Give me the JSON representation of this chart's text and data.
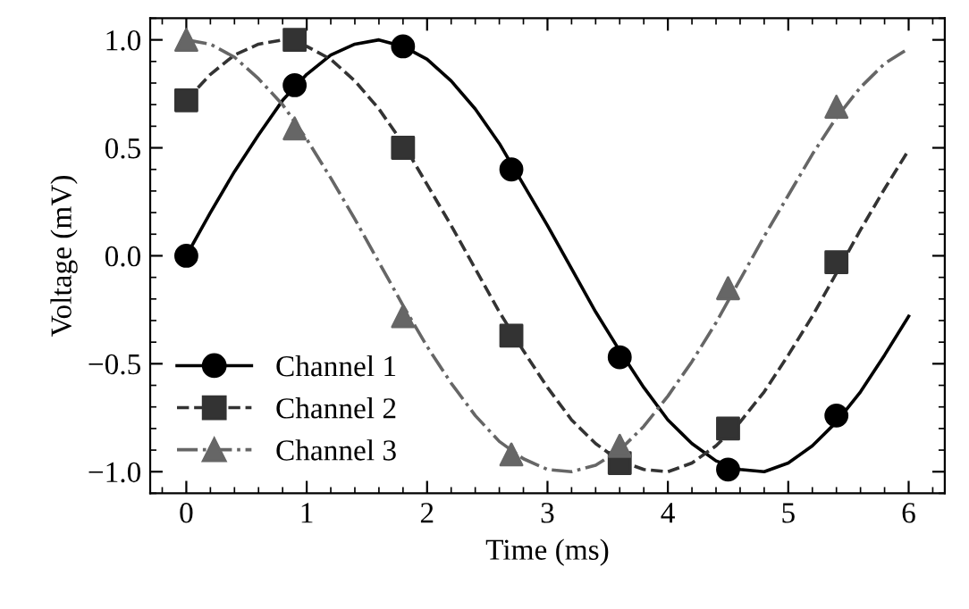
{
  "chart_data": {
    "type": "line",
    "xlabel": "Time (ms)",
    "ylabel": "Voltage (mV)",
    "xlim": [
      -0.3,
      6.3
    ],
    "ylim": [
      -1.1,
      1.1
    ],
    "xticks": [
      0,
      1,
      2,
      3,
      4,
      5,
      6
    ],
    "yticks": [
      {
        "value": -1.0,
        "label": "−1.0"
      },
      {
        "value": -0.5,
        "label": "−0.5"
      },
      {
        "value": 0.0,
        "label": "0.0"
      },
      {
        "value": 0.5,
        "label": "0.5"
      },
      {
        "value": 1.0,
        "label": "1.0"
      }
    ],
    "grid": false,
    "legend": "bottom left",
    "series": [
      {
        "name": "Channel 1",
        "color": "#000000",
        "line_style": "solid",
        "marker": "none",
        "x": [
          0,
          0.2,
          0.4,
          0.6,
          0.8,
          1.0,
          1.2,
          1.4,
          1.6,
          1.8,
          2.0,
          2.2,
          2.4,
          2.6,
          2.8,
          3.0,
          3.2,
          3.4,
          3.6,
          3.8,
          4.0,
          4.2,
          4.4,
          4.6,
          4.8,
          5.0,
          5.2,
          5.4,
          5.6,
          5.8,
          6.0
        ],
        "values": [
          0,
          0.2,
          0.39,
          0.56,
          0.72,
          0.84,
          0.93,
          0.98,
          1.0,
          0.97,
          0.91,
          0.81,
          0.68,
          0.52,
          0.33,
          0.14,
          -0.06,
          -0.26,
          -0.44,
          -0.61,
          -0.76,
          -0.87,
          -0.95,
          -0.99,
          -1.0,
          -0.96,
          -0.88,
          -0.77,
          -0.63,
          -0.46,
          -0.28
        ]
      },
      {
        "name": "Channel 2",
        "color": "#333333",
        "line_style": "dashed",
        "marker": "none",
        "x": [
          0,
          0.2,
          0.4,
          0.6,
          0.8,
          1.0,
          1.2,
          1.4,
          1.6,
          1.8,
          2.0,
          2.2,
          2.4,
          2.6,
          2.8,
          3.0,
          3.2,
          3.4,
          3.6,
          3.8,
          4.0,
          4.2,
          4.4,
          4.6,
          4.8,
          5.0,
          5.2,
          5.4,
          5.6,
          5.8,
          6.0
        ],
        "values": [
          0.72,
          0.84,
          0.93,
          0.98,
          1.0,
          0.97,
          0.91,
          0.81,
          0.68,
          0.52,
          0.33,
          0.14,
          -0.06,
          -0.26,
          -0.44,
          -0.61,
          -0.76,
          -0.87,
          -0.95,
          -0.99,
          -1.0,
          -0.96,
          -0.88,
          -0.77,
          -0.63,
          -0.46,
          -0.28,
          -0.08,
          0.12,
          0.31,
          0.49
        ]
      },
      {
        "name": "Channel 3",
        "color": "#666666",
        "line_style": "dashdot",
        "marker": "none",
        "x": [
          0,
          0.2,
          0.4,
          0.6,
          0.8,
          1.0,
          1.2,
          1.4,
          1.6,
          1.8,
          2.0,
          2.2,
          2.4,
          2.6,
          2.8,
          3.0,
          3.2,
          3.4,
          3.6,
          3.8,
          4.0,
          4.2,
          4.4,
          4.6,
          4.8,
          5.0,
          5.2,
          5.4,
          5.6,
          5.8,
          6.0
        ],
        "values": [
          1.0,
          0.98,
          0.92,
          0.82,
          0.7,
          0.54,
          0.36,
          0.17,
          -0.03,
          -0.23,
          -0.42,
          -0.59,
          -0.74,
          -0.86,
          -0.94,
          -0.99,
          -1.0,
          -0.97,
          -0.9,
          -0.79,
          -0.65,
          -0.49,
          -0.31,
          -0.11,
          0.09,
          0.28,
          0.47,
          0.64,
          0.78,
          0.89,
          0.96
        ]
      },
      {
        "type": "scatter",
        "color": "#000000",
        "marker": "circle",
        "x": [
          0,
          0.9,
          1.8,
          2.7,
          3.6,
          4.5,
          5.4
        ],
        "values": [
          0,
          0.79,
          0.97,
          0.4,
          -0.47,
          -0.99,
          -0.74
        ]
      },
      {
        "type": "scatter",
        "color": "#333333",
        "marker": "square",
        "x": [
          0,
          0.9,
          1.8,
          2.7,
          3.6,
          4.5,
          5.4
        ],
        "values": [
          0.72,
          1.0,
          0.5,
          -0.37,
          -0.96,
          -0.8,
          -0.03
        ]
      },
      {
        "type": "scatter",
        "color": "#666666",
        "marker": "triangle",
        "x": [
          0,
          0.9,
          1.8,
          2.7,
          3.6,
          4.5,
          5.4
        ],
        "values": [
          1.0,
          0.59,
          -0.28,
          -0.92,
          -0.88,
          -0.15,
          0.69
        ]
      }
    ]
  }
}
